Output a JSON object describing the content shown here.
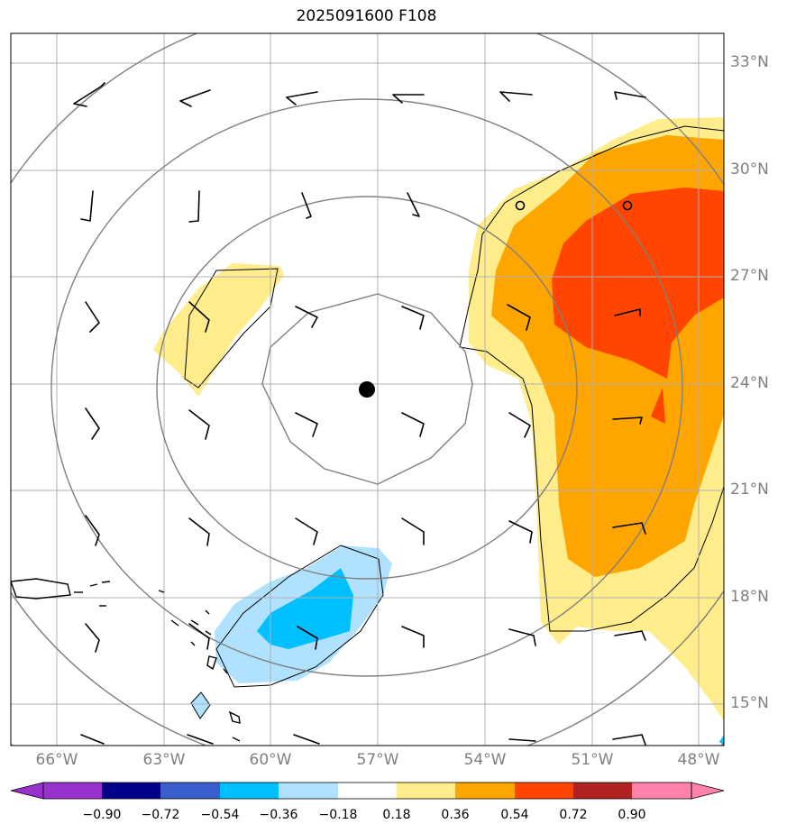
{
  "title": "2025091600 F108",
  "latitude_labels": [
    "33°N",
    "30°N",
    "27°N",
    "24°N",
    "21°N",
    "18°N",
    "15°N"
  ],
  "longitude_labels": [
    "66°W",
    "63°W",
    "60°W",
    "57°W",
    "54°W",
    "51°W",
    "48°W"
  ],
  "colorbar": {
    "colors": [
      "#9932cc",
      "#00008b",
      "#3a5fcd",
      "#00bfff",
      "#b0e2ff",
      "#ffffff",
      "#ffec8b",
      "#ffa500",
      "#ff4500",
      "#b22222",
      "#ff82ab"
    ],
    "tick_labels": [
      "−0.90",
      "−0.72",
      "−0.54",
      "−0.36",
      "−0.18",
      "0.18",
      "0.36",
      "0.54",
      "0.72",
      "0.90"
    ]
  },
  "storm_center": {
    "lat": 24.1,
    "lon": -56.7
  },
  "range_rings": "concentric circles centered on storm",
  "wind_barbs": "black wind barbs on a regular grid"
}
